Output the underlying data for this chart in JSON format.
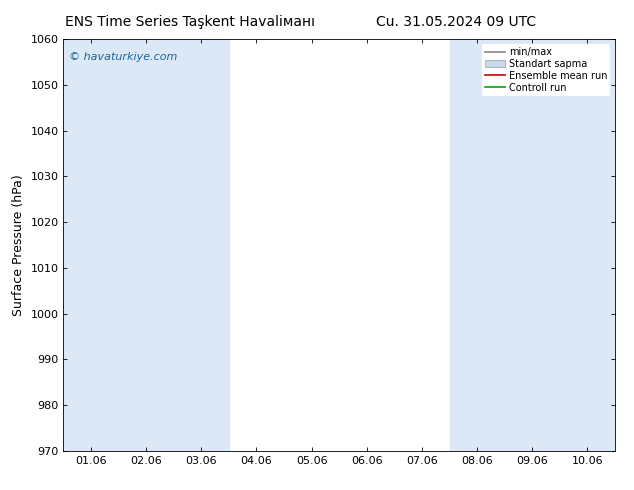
{
  "title": "ENS Time Series Taşkent Havaliманı",
  "title_left": "ENS Time Series Taşkent Havaliманı",
  "title_right": "Cu. 31.05.2024 09 UTC",
  "ylabel": "Surface Pressure (hPa)",
  "ylim": [
    970,
    1060
  ],
  "yticks": [
    970,
    980,
    990,
    1000,
    1010,
    1020,
    1030,
    1040,
    1050,
    1060
  ],
  "xtick_labels": [
    "01.06",
    "02.06",
    "03.06",
    "04.06",
    "05.06",
    "06.06",
    "07.06",
    "08.06",
    "09.06",
    "10.06"
  ],
  "watermark": "© havaturkiye.com",
  "legend_labels": [
    "min/max",
    "Standart sapma",
    "Ensemble mean run",
    "Controll run"
  ],
  "background_color": "#ffffff",
  "plot_bg_color": "#ffffff",
  "band_color": "#dce8f5",
  "title_fontsize": 10,
  "tick_fontsize": 8,
  "ylabel_fontsize": 9,
  "watermark_color": "#1a6699",
  "blue_band_indices": [
    0,
    1,
    2,
    7,
    8,
    9
  ]
}
